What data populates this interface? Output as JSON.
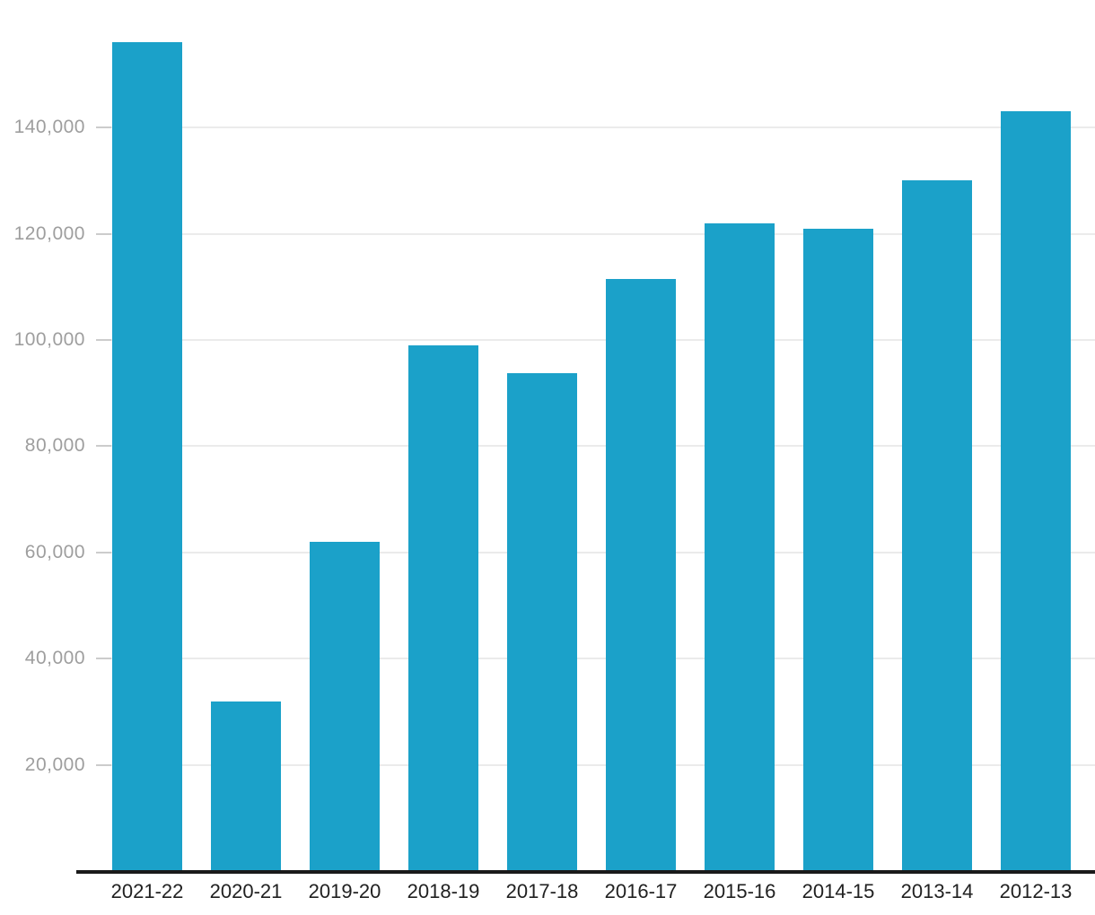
{
  "chart_data": {
    "type": "bar",
    "title": "",
    "xlabel": "",
    "ylabel": "",
    "legend": "none",
    "grid": "horizontal",
    "categories": [
      "2021-22",
      "2020-21",
      "2019-20",
      "2018-19",
      "2017-18",
      "2016-17",
      "2015-16",
      "2014-15",
      "2013-14",
      "2012-13"
    ],
    "values": [
      156000,
      32000,
      62000,
      99000,
      93700,
      111400,
      122000,
      121000,
      130000,
      143000
    ],
    "yticks": [
      {
        "value": 20000,
        "label": "20,000"
      },
      {
        "value": 40000,
        "label": "40,000"
      },
      {
        "value": 60000,
        "label": "60,000"
      },
      {
        "value": 80000,
        "label": "80,000"
      },
      {
        "value": 100000,
        "label": "100,000"
      },
      {
        "value": 120000,
        "label": "120,000"
      },
      {
        "value": 140000,
        "label": "140,000"
      }
    ],
    "ylim": [
      0,
      164000
    ],
    "colors": {
      "bar": "#1BA1C9",
      "gridline": "#EBEBEB",
      "tick": "#CCCCCC",
      "axis_line": "#1A1A1A",
      "ytick_text": "#9E9E9E",
      "xtick_text": "#212121",
      "background": "#FFFFFF"
    }
  }
}
